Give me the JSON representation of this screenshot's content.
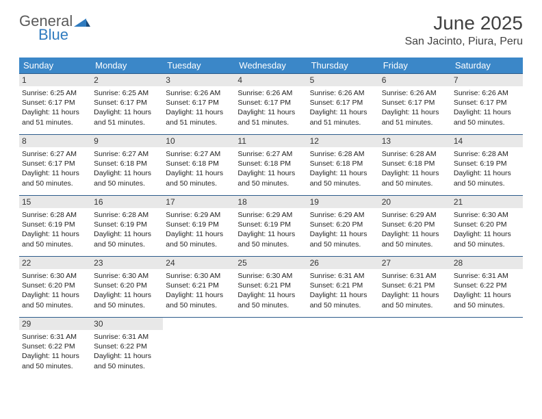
{
  "logo": {
    "text_general": "General",
    "text_blue": "Blue",
    "mark_color": "#2f7bbf"
  },
  "header": {
    "month_title": "June 2025",
    "location": "San Jacinto, Piura, Peru"
  },
  "colors": {
    "header_bg": "#3b87c8",
    "header_text": "#ffffff",
    "daynum_bg": "#e8e8e8",
    "week_border": "#2a5a8a",
    "body_text": "#222222",
    "title_text": "#404040"
  },
  "day_names": [
    "Sunday",
    "Monday",
    "Tuesday",
    "Wednesday",
    "Thursday",
    "Friday",
    "Saturday"
  ],
  "weeks": [
    [
      {
        "n": "1",
        "sr": "Sunrise: 6:25 AM",
        "ss": "Sunset: 6:17 PM",
        "d1": "Daylight: 11 hours",
        "d2": "and 51 minutes."
      },
      {
        "n": "2",
        "sr": "Sunrise: 6:25 AM",
        "ss": "Sunset: 6:17 PM",
        "d1": "Daylight: 11 hours",
        "d2": "and 51 minutes."
      },
      {
        "n": "3",
        "sr": "Sunrise: 6:26 AM",
        "ss": "Sunset: 6:17 PM",
        "d1": "Daylight: 11 hours",
        "d2": "and 51 minutes."
      },
      {
        "n": "4",
        "sr": "Sunrise: 6:26 AM",
        "ss": "Sunset: 6:17 PM",
        "d1": "Daylight: 11 hours",
        "d2": "and 51 minutes."
      },
      {
        "n": "5",
        "sr": "Sunrise: 6:26 AM",
        "ss": "Sunset: 6:17 PM",
        "d1": "Daylight: 11 hours",
        "d2": "and 51 minutes."
      },
      {
        "n": "6",
        "sr": "Sunrise: 6:26 AM",
        "ss": "Sunset: 6:17 PM",
        "d1": "Daylight: 11 hours",
        "d2": "and 51 minutes."
      },
      {
        "n": "7",
        "sr": "Sunrise: 6:26 AM",
        "ss": "Sunset: 6:17 PM",
        "d1": "Daylight: 11 hours",
        "d2": "and 50 minutes."
      }
    ],
    [
      {
        "n": "8",
        "sr": "Sunrise: 6:27 AM",
        "ss": "Sunset: 6:17 PM",
        "d1": "Daylight: 11 hours",
        "d2": "and 50 minutes."
      },
      {
        "n": "9",
        "sr": "Sunrise: 6:27 AM",
        "ss": "Sunset: 6:18 PM",
        "d1": "Daylight: 11 hours",
        "d2": "and 50 minutes."
      },
      {
        "n": "10",
        "sr": "Sunrise: 6:27 AM",
        "ss": "Sunset: 6:18 PM",
        "d1": "Daylight: 11 hours",
        "d2": "and 50 minutes."
      },
      {
        "n": "11",
        "sr": "Sunrise: 6:27 AM",
        "ss": "Sunset: 6:18 PM",
        "d1": "Daylight: 11 hours",
        "d2": "and 50 minutes."
      },
      {
        "n": "12",
        "sr": "Sunrise: 6:28 AM",
        "ss": "Sunset: 6:18 PM",
        "d1": "Daylight: 11 hours",
        "d2": "and 50 minutes."
      },
      {
        "n": "13",
        "sr": "Sunrise: 6:28 AM",
        "ss": "Sunset: 6:18 PM",
        "d1": "Daylight: 11 hours",
        "d2": "and 50 minutes."
      },
      {
        "n": "14",
        "sr": "Sunrise: 6:28 AM",
        "ss": "Sunset: 6:19 PM",
        "d1": "Daylight: 11 hours",
        "d2": "and 50 minutes."
      }
    ],
    [
      {
        "n": "15",
        "sr": "Sunrise: 6:28 AM",
        "ss": "Sunset: 6:19 PM",
        "d1": "Daylight: 11 hours",
        "d2": "and 50 minutes."
      },
      {
        "n": "16",
        "sr": "Sunrise: 6:28 AM",
        "ss": "Sunset: 6:19 PM",
        "d1": "Daylight: 11 hours",
        "d2": "and 50 minutes."
      },
      {
        "n": "17",
        "sr": "Sunrise: 6:29 AM",
        "ss": "Sunset: 6:19 PM",
        "d1": "Daylight: 11 hours",
        "d2": "and 50 minutes."
      },
      {
        "n": "18",
        "sr": "Sunrise: 6:29 AM",
        "ss": "Sunset: 6:19 PM",
        "d1": "Daylight: 11 hours",
        "d2": "and 50 minutes."
      },
      {
        "n": "19",
        "sr": "Sunrise: 6:29 AM",
        "ss": "Sunset: 6:20 PM",
        "d1": "Daylight: 11 hours",
        "d2": "and 50 minutes."
      },
      {
        "n": "20",
        "sr": "Sunrise: 6:29 AM",
        "ss": "Sunset: 6:20 PM",
        "d1": "Daylight: 11 hours",
        "d2": "and 50 minutes."
      },
      {
        "n": "21",
        "sr": "Sunrise: 6:30 AM",
        "ss": "Sunset: 6:20 PM",
        "d1": "Daylight: 11 hours",
        "d2": "and 50 minutes."
      }
    ],
    [
      {
        "n": "22",
        "sr": "Sunrise: 6:30 AM",
        "ss": "Sunset: 6:20 PM",
        "d1": "Daylight: 11 hours",
        "d2": "and 50 minutes."
      },
      {
        "n": "23",
        "sr": "Sunrise: 6:30 AM",
        "ss": "Sunset: 6:20 PM",
        "d1": "Daylight: 11 hours",
        "d2": "and 50 minutes."
      },
      {
        "n": "24",
        "sr": "Sunrise: 6:30 AM",
        "ss": "Sunset: 6:21 PM",
        "d1": "Daylight: 11 hours",
        "d2": "and 50 minutes."
      },
      {
        "n": "25",
        "sr": "Sunrise: 6:30 AM",
        "ss": "Sunset: 6:21 PM",
        "d1": "Daylight: 11 hours",
        "d2": "and 50 minutes."
      },
      {
        "n": "26",
        "sr": "Sunrise: 6:31 AM",
        "ss": "Sunset: 6:21 PM",
        "d1": "Daylight: 11 hours",
        "d2": "and 50 minutes."
      },
      {
        "n": "27",
        "sr": "Sunrise: 6:31 AM",
        "ss": "Sunset: 6:21 PM",
        "d1": "Daylight: 11 hours",
        "d2": "and 50 minutes."
      },
      {
        "n": "28",
        "sr": "Sunrise: 6:31 AM",
        "ss": "Sunset: 6:22 PM",
        "d1": "Daylight: 11 hours",
        "d2": "and 50 minutes."
      }
    ],
    [
      {
        "n": "29",
        "sr": "Sunrise: 6:31 AM",
        "ss": "Sunset: 6:22 PM",
        "d1": "Daylight: 11 hours",
        "d2": "and 50 minutes."
      },
      {
        "n": "30",
        "sr": "Sunrise: 6:31 AM",
        "ss": "Sunset: 6:22 PM",
        "d1": "Daylight: 11 hours",
        "d2": "and 50 minutes."
      },
      null,
      null,
      null,
      null,
      null
    ]
  ]
}
